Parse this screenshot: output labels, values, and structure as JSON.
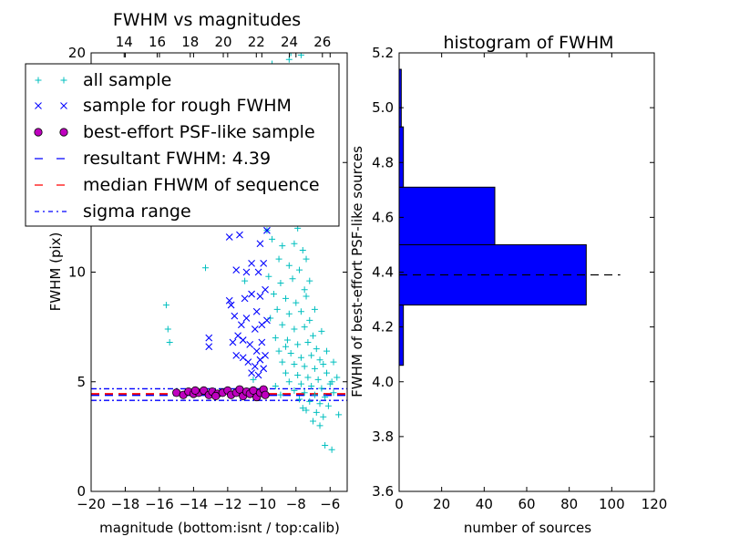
{
  "chart_data": [
    {
      "type": "scatter",
      "title": "FWHM vs magnitudes",
      "xlabel": "magnitude (bottom:isnt / top:calib)",
      "ylabel": "FWHM (pix)",
      "xlim": [
        -20,
        -5
      ],
      "ylim": [
        0,
        20
      ],
      "xticks": [
        -20,
        -18,
        -16,
        -14,
        -12,
        -10,
        -8,
        -6
      ],
      "xtick_labels": [
        "−20",
        "−18",
        "−16",
        "−14",
        "−12",
        "−10",
        "−8",
        "−6"
      ],
      "yticks": [
        0,
        5,
        10,
        15,
        20
      ],
      "ytick_labels": [
        "0",
        "5",
        "10",
        "15",
        "20"
      ],
      "top_xaxis": {
        "lim": [
          12,
          27.5
        ],
        "ticks": [
          14,
          16,
          18,
          20,
          22,
          24,
          26
        ],
        "labels": [
          "14",
          "16",
          "18",
          "20",
          "22",
          "24",
          "26"
        ]
      },
      "legend": {
        "location": "upper-left",
        "entries": [
          {
            "label": "all sample",
            "marker": "plus",
            "color": "#00bfbf"
          },
          {
            "label": "sample for rough FWHM",
            "marker": "x",
            "color": "#0000ff"
          },
          {
            "label": "best-effort PSF-like sample",
            "marker": "circle",
            "color": "#bf00bf"
          },
          {
            "label": "resultant FWHM: 4.39",
            "marker": "dashed-line",
            "color": "#0000ff"
          },
          {
            "label": "median FHWM of sequence",
            "marker": "dashed-line",
            "color": "#ff0000"
          },
          {
            "label": "sigma range",
            "marker": "dashdot-line",
            "color": "#0000ff"
          }
        ]
      },
      "reference_lines": {
        "resultant_fwhm": 4.39,
        "median_fwhm": 4.45,
        "sigma_low": 4.15,
        "sigma_high": 4.68
      },
      "series": [
        {
          "name": "all sample",
          "marker": "plus",
          "color": "#00bfbf",
          "points": [
            [
              -15.6,
              8.5
            ],
            [
              -15.5,
              7.4
            ],
            [
              -15.4,
              6.8
            ],
            [
              -13.3,
              10.2
            ],
            [
              -11.0,
              9.6
            ],
            [
              -10.5,
              5.1
            ],
            [
              -6.3,
              2.1
            ],
            [
              -5.9,
              1.9
            ],
            [
              -5.5,
              3.5
            ],
            [
              -9.4,
              19.5
            ],
            [
              -8.4,
              19.7
            ],
            [
              -8.3,
              20.0
            ],
            [
              -7.7,
              19.9
            ],
            [
              -8.7,
              19.2
            ],
            [
              -9.3,
              18.4
            ],
            [
              -7.9,
              18.6
            ],
            [
              -9.0,
              17.6
            ],
            [
              -8.1,
              17.3
            ],
            [
              -9.4,
              16.4
            ],
            [
              -8.5,
              16.1
            ],
            [
              -7.6,
              16.8
            ],
            [
              -9.1,
              15.2
            ],
            [
              -8.0,
              15.6
            ],
            [
              -9.3,
              14.4
            ],
            [
              -8.3,
              14.5
            ],
            [
              -7.8,
              13.9
            ],
            [
              -9.5,
              13.3
            ],
            [
              -8.6,
              13.1
            ],
            [
              -7.6,
              12.9
            ],
            [
              -9.2,
              12.4
            ],
            [
              -8.4,
              12.6
            ],
            [
              -7.9,
              12.0
            ],
            [
              -9.4,
              11.5
            ],
            [
              -8.8,
              11.2
            ],
            [
              -8.1,
              11.3
            ],
            [
              -7.6,
              11.0
            ],
            [
              -9.0,
              10.6
            ],
            [
              -8.4,
              10.3
            ],
            [
              -7.8,
              10.1
            ],
            [
              -9.6,
              9.8
            ],
            [
              -8.9,
              9.5
            ],
            [
              -8.2,
              9.7
            ],
            [
              -7.5,
              9.2
            ],
            [
              -9.3,
              9.0
            ],
            [
              -8.6,
              8.8
            ],
            [
              -8.0,
              8.6
            ],
            [
              -7.4,
              8.9
            ],
            [
              -9.1,
              8.3
            ],
            [
              -8.4,
              8.1
            ],
            [
              -7.7,
              8.2
            ],
            [
              -7.2,
              7.8
            ],
            [
              -9.5,
              7.9
            ],
            [
              -8.8,
              7.6
            ],
            [
              -8.1,
              7.4
            ],
            [
              -7.5,
              7.5
            ],
            [
              -7.0,
              7.1
            ],
            [
              -9.2,
              7.0
            ],
            [
              -8.5,
              6.9
            ],
            [
              -7.9,
              6.7
            ],
            [
              -7.3,
              6.8
            ],
            [
              -6.8,
              6.5
            ],
            [
              -9.0,
              6.4
            ],
            [
              -8.3,
              6.3
            ],
            [
              -7.7,
              6.1
            ],
            [
              -7.1,
              6.2
            ],
            [
              -6.6,
              6.0
            ],
            [
              -8.8,
              5.9
            ],
            [
              -8.1,
              5.8
            ],
            [
              -7.5,
              5.7
            ],
            [
              -6.9,
              5.6
            ],
            [
              -6.4,
              5.8
            ],
            [
              -8.6,
              5.4
            ],
            [
              -7.9,
              5.3
            ],
            [
              -7.3,
              5.2
            ],
            [
              -6.7,
              5.1
            ],
            [
              -6.2,
              5.4
            ],
            [
              -5.8,
              5.9
            ],
            [
              -8.4,
              5.0
            ],
            [
              -7.7,
              4.9
            ],
            [
              -7.1,
              4.8
            ],
            [
              -6.5,
              4.7
            ],
            [
              -6.0,
              4.9
            ],
            [
              -5.6,
              5.2
            ],
            [
              -8.1,
              4.6
            ],
            [
              -7.5,
              4.5
            ],
            [
              -6.9,
              4.4
            ],
            [
              -6.3,
              4.3
            ],
            [
              -5.8,
              4.5
            ],
            [
              -7.8,
              4.2
            ],
            [
              -7.2,
              4.1
            ],
            [
              -6.6,
              4.0
            ],
            [
              -6.1,
              3.9
            ],
            [
              -7.4,
              3.7
            ],
            [
              -6.8,
              3.6
            ],
            [
              -6.4,
              3.4
            ],
            [
              -7.0,
              3.2
            ],
            [
              -6.6,
              3.0
            ],
            [
              -7.6,
              3.8
            ],
            [
              -8.9,
              4.4
            ],
            [
              -9.2,
              4.8
            ],
            [
              -8.6,
              6.6
            ],
            [
              -7.2,
              9.6
            ],
            [
              -6.9,
              8.3
            ],
            [
              -6.5,
              7.3
            ],
            [
              -9.7,
              11.9
            ],
            [
              -8.7,
              14.0
            ],
            [
              -7.4,
              10.6
            ],
            [
              -6.2,
              6.4
            ],
            [
              -5.9,
              5.0
            ]
          ]
        },
        {
          "name": "sample for rough FWHM",
          "marker": "x",
          "color": "#0000ff",
          "points": [
            [
              -11.9,
              11.6
            ],
            [
              -11.3,
              11.7
            ],
            [
              -10.2,
              14.2
            ],
            [
              -10.0,
              14.0
            ],
            [
              -9.9,
              14.4
            ],
            [
              -10.3,
              12.9
            ],
            [
              -9.8,
              13.4
            ],
            [
              -10.1,
              11.3
            ],
            [
              -9.7,
              11.9
            ],
            [
              -11.5,
              10.1
            ],
            [
              -10.6,
              10.4
            ],
            [
              -10.2,
              10.0
            ],
            [
              -9.9,
              10.4
            ],
            [
              -11.9,
              8.7
            ],
            [
              -11.8,
              8.5
            ],
            [
              -11.0,
              8.8
            ],
            [
              -10.6,
              9.0
            ],
            [
              -10.1,
              8.9
            ],
            [
              -9.8,
              9.2
            ],
            [
              -11.6,
              8.0
            ],
            [
              -11.2,
              7.6
            ],
            [
              -10.9,
              7.9
            ],
            [
              -10.4,
              7.4
            ],
            [
              -10.0,
              7.6
            ],
            [
              -9.7,
              7.8
            ],
            [
              -13.1,
              7.0
            ],
            [
              -13.1,
              6.6
            ],
            [
              -11.7,
              6.8
            ],
            [
              -11.4,
              7.1
            ],
            [
              -11.1,
              6.9
            ],
            [
              -10.7,
              6.7
            ],
            [
              -10.3,
              6.4
            ],
            [
              -10.0,
              6.8
            ],
            [
              -11.5,
              6.2
            ],
            [
              -11.1,
              6.1
            ],
            [
              -10.8,
              5.9
            ],
            [
              -10.4,
              5.7
            ],
            [
              -10.1,
              6.0
            ],
            [
              -9.8,
              6.2
            ],
            [
              -10.6,
              5.4
            ],
            [
              -10.2,
              5.3
            ],
            [
              -9.9,
              5.6
            ],
            [
              -10.9,
              10.0
            ],
            [
              -10.3,
              8.2
            ]
          ]
        },
        {
          "name": "best-effort PSF-like sample",
          "marker": "circle",
          "color": "#bf00bf",
          "points": [
            [
              -15.0,
              4.5
            ],
            [
              -14.6,
              4.4
            ],
            [
              -14.3,
              4.55
            ],
            [
              -14.0,
              4.45
            ],
            [
              -13.7,
              4.5
            ],
            [
              -13.4,
              4.6
            ],
            [
              -13.1,
              4.4
            ],
            [
              -12.9,
              4.55
            ],
            [
              -12.6,
              4.45
            ],
            [
              -12.3,
              4.5
            ],
            [
              -12.0,
              4.6
            ],
            [
              -11.8,
              4.4
            ],
            [
              -11.5,
              4.5
            ],
            [
              -11.3,
              4.65
            ],
            [
              -11.1,
              4.35
            ],
            [
              -10.9,
              4.55
            ],
            [
              -10.7,
              4.45
            ],
            [
              -10.5,
              4.6
            ],
            [
              -10.3,
              4.3
            ],
            [
              -10.1,
              4.5
            ],
            [
              -9.9,
              4.65
            ],
            [
              -9.8,
              4.4
            ],
            [
              -12.7,
              4.35
            ],
            [
              -13.9,
              4.6
            ]
          ]
        }
      ]
    },
    {
      "type": "bar",
      "orientation": "horizontal",
      "title": "histogram of FWHM",
      "xlabel": "number of sources",
      "ylabel": "FWHM of best-effort PSF-like sources",
      "xlim": [
        0,
        120
      ],
      "ylim": [
        3.6,
        5.2
      ],
      "xticks": [
        0,
        20,
        40,
        60,
        80,
        100,
        120
      ],
      "xtick_labels": [
        "0",
        "20",
        "40",
        "60",
        "80",
        "100",
        "120"
      ],
      "yticks": [
        3.6,
        3.8,
        4.0,
        4.2,
        4.4,
        4.6,
        4.8,
        5.0,
        5.2
      ],
      "ytick_labels": [
        "3.6",
        "3.8",
        "4.0",
        "4.2",
        "4.4",
        "4.6",
        "4.8",
        "5.0",
        "5.2"
      ],
      "color": "#0000ff",
      "bins": [
        {
          "lo": 4.06,
          "hi": 4.28,
          "count": 2
        },
        {
          "lo": 4.28,
          "hi": 4.5,
          "count": 88
        },
        {
          "lo": 4.5,
          "hi": 4.71,
          "count": 45
        },
        {
          "lo": 4.71,
          "hi": 4.93,
          "count": 2
        },
        {
          "lo": 4.93,
          "hi": 5.14,
          "count": 1
        }
      ],
      "reference_line": {
        "y": 4.39,
        "x_range": [
          0,
          104
        ],
        "style": "dashed",
        "color": "#000000"
      }
    }
  ]
}
